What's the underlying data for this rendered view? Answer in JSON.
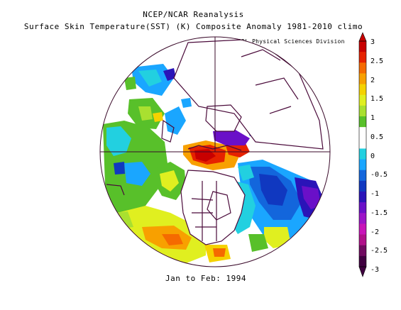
{
  "header": {
    "line1": "NCEP/NCAR Reanalysis",
    "line2": "Surface Skin Temperature(SST) (K) Composite Anomaly 1981-2010 climo"
  },
  "credit": "NOAA/ESRL Physical Sciences Division",
  "footer": {
    "period": "Jan to Feb: 1994"
  },
  "colorbar": {
    "labels": [
      "3",
      "2.5",
      "2",
      "1.5",
      "1",
      "0.5",
      "0",
      "-0.5",
      "-1",
      "-1.5",
      "-2",
      "-2.5",
      "-3"
    ],
    "colors": [
      "#c80000",
      "#e62200",
      "#f56a00",
      "#f8a000",
      "#f5d200",
      "#e0ef20",
      "#a9e030",
      "#58c02a",
      "#ffffff",
      "#ffffff",
      "#22d0e0",
      "#1aa6ff",
      "#1366dc",
      "#1038c0",
      "#2a14b8",
      "#6a10c8",
      "#9c14c8",
      "#c814b8",
      "#b0108a",
      "#700a60",
      "#400040"
    ]
  },
  "map": {
    "projection": "north polar stereographic",
    "coast_color": "#4a0a3a",
    "graticule_color": "#3a0a2a"
  }
}
